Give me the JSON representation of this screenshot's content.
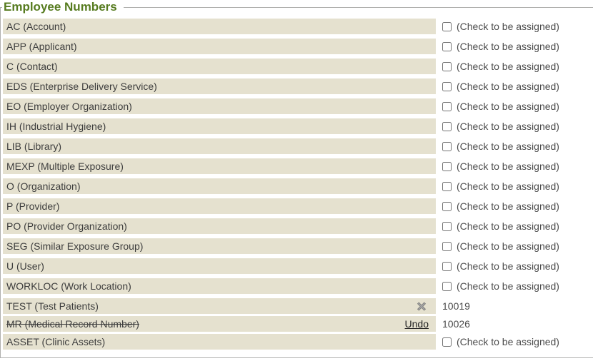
{
  "panel": {
    "title": "Employee Numbers"
  },
  "checkbox_label": "(Check to be assigned)",
  "rows": [
    {
      "label": "AC (Account)",
      "type": "checkbox"
    },
    {
      "label": "APP (Applicant)",
      "type": "checkbox"
    },
    {
      "label": "C (Contact)",
      "type": "checkbox"
    },
    {
      "label": "EDS (Enterprise Delivery Service)",
      "type": "checkbox"
    },
    {
      "label": "EO (Employer Organization)",
      "type": "checkbox"
    },
    {
      "label": "IH (Industrial Hygiene)",
      "type": "checkbox"
    },
    {
      "label": "LIB (Library)",
      "type": "checkbox"
    },
    {
      "label": "MEXP (Multiple Exposure)",
      "type": "checkbox"
    },
    {
      "label": "O (Organization)",
      "type": "checkbox"
    },
    {
      "label": "P (Provider)",
      "type": "checkbox"
    },
    {
      "label": "PO (Provider Organization)",
      "type": "checkbox"
    },
    {
      "label": "SEG (Similar Exposure Group)",
      "type": "checkbox"
    },
    {
      "label": "U (User)",
      "type": "checkbox"
    },
    {
      "label": "WORKLOC (Work Location)",
      "type": "checkbox"
    },
    {
      "label": "TEST (Test Patients)",
      "type": "assigned",
      "value": "10019",
      "icon": "remove-x-icon"
    },
    {
      "label": "MR (Medical Record Number)",
      "type": "removed",
      "value": "10026",
      "action_label": "Undo"
    },
    {
      "label": "ASSET (Clinic Assets)",
      "type": "checkbox"
    }
  ],
  "colors": {
    "title": "#567b1f",
    "border": "#b0b0ae",
    "row_bg": "#e5e1cf",
    "text": "#3d3d3d",
    "muted": "#4c4c4c",
    "link": "#222222"
  }
}
